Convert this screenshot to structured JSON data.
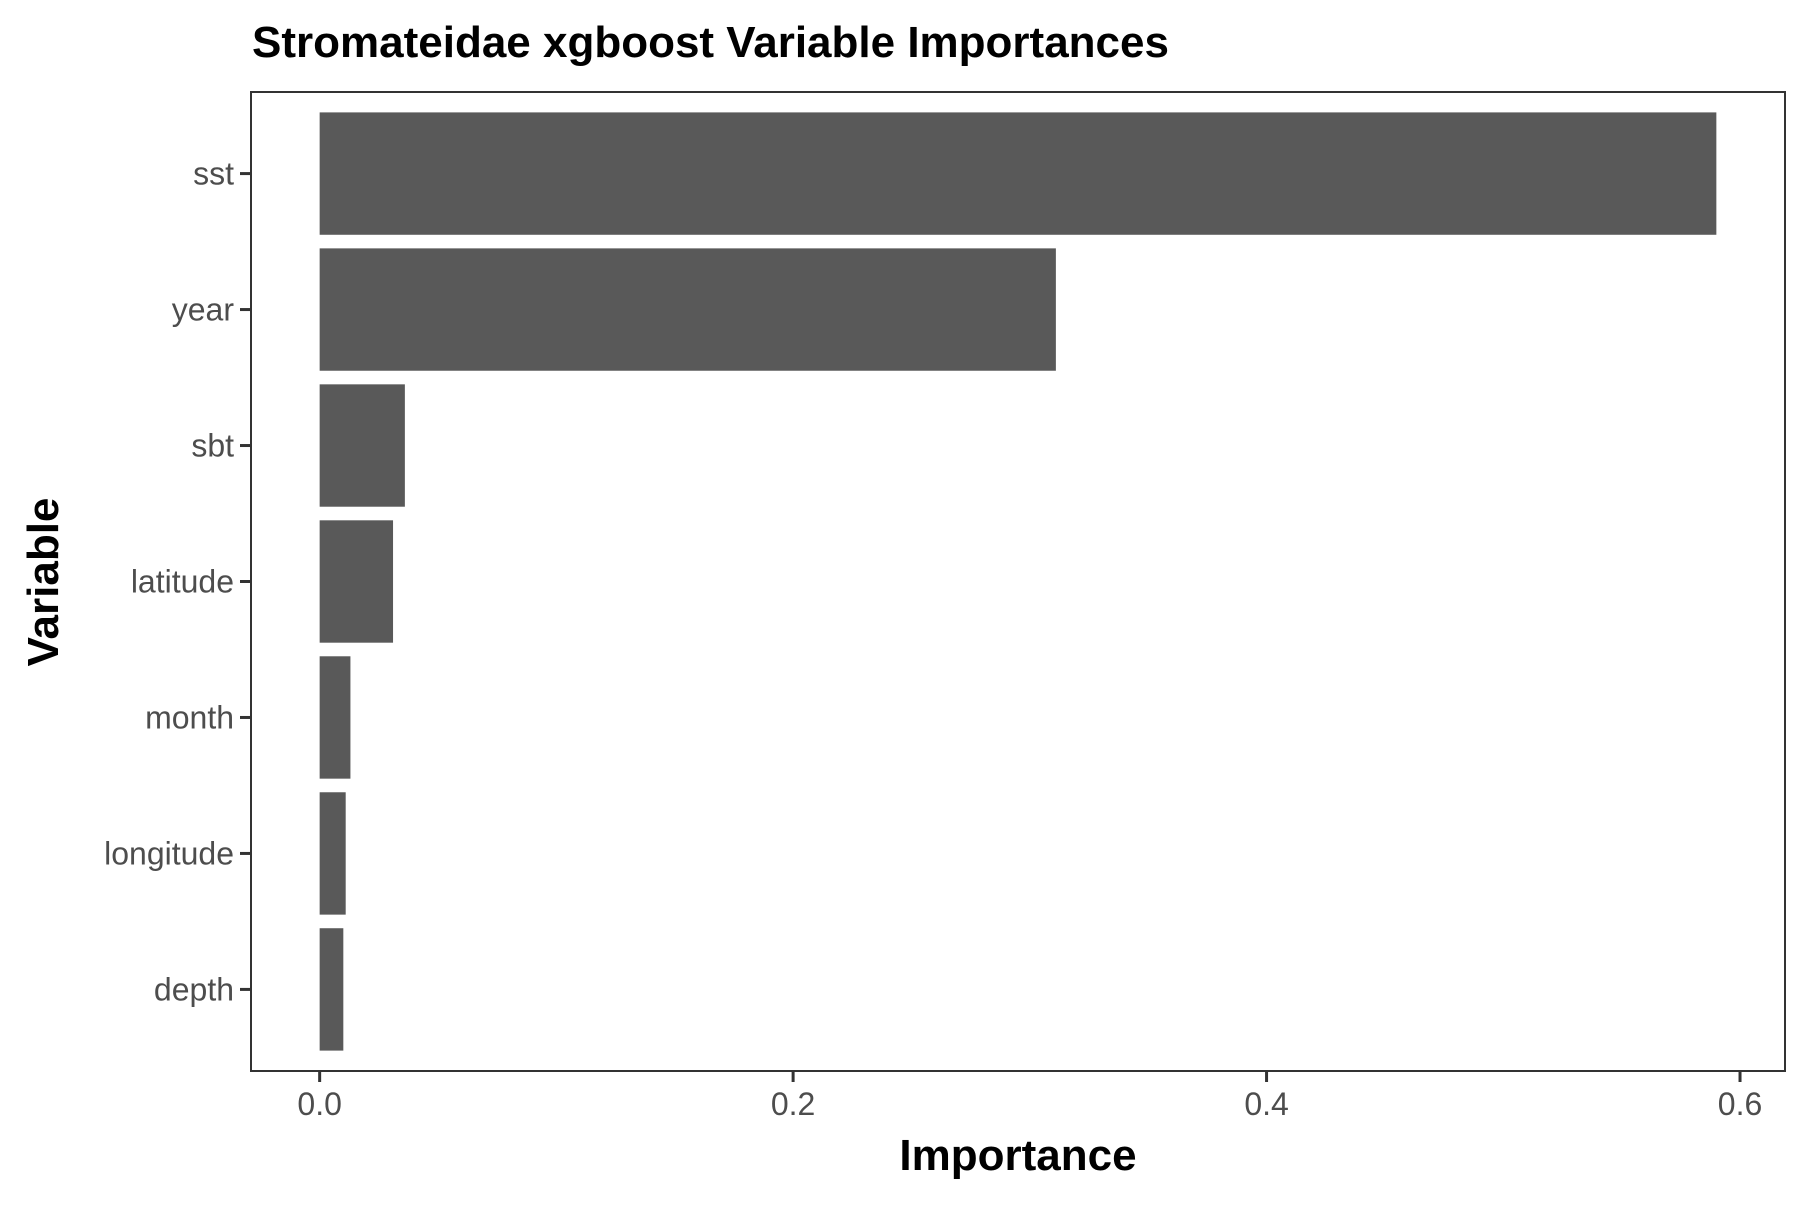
{
  "chart_data": {
    "type": "bar",
    "orientation": "horizontal",
    "title": "Stromateidae xgboost Variable Importances",
    "xlabel": "Importance",
    "ylabel": "Variable",
    "categories": [
      "sst",
      "year",
      "sbt",
      "latitude",
      "month",
      "longitude",
      "depth"
    ],
    "values": [
      0.59,
      0.311,
      0.036,
      0.031,
      0.013,
      0.011,
      0.01
    ],
    "xlim": [
      -0.029,
      0.619
    ],
    "xticks": [
      0.0,
      0.2,
      0.4,
      0.6
    ],
    "xtick_labels": [
      "0.0",
      "0.2",
      "0.4",
      "0.6"
    ],
    "grid": false,
    "legend": "none",
    "colors": {
      "bar": "#595959",
      "panel_border": "#333333",
      "tick": "#333333",
      "tick_label": "#4d4d4d"
    }
  }
}
